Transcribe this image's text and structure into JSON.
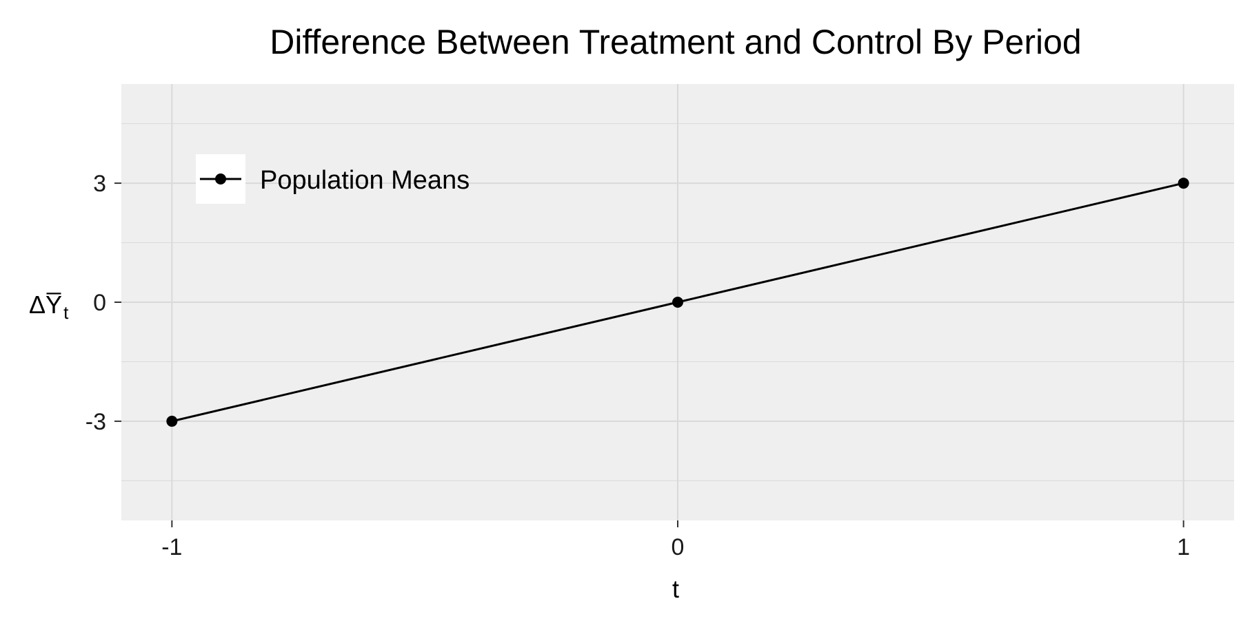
{
  "chart_data": {
    "type": "line",
    "title": "Difference Between Treatment and Control By Period",
    "xlabel": "t",
    "ylabel": "ΔY̅t",
    "ylabel_parts": {
      "main": "ΔY̅",
      "subscript": "t"
    },
    "x": [
      -1,
      0,
      1
    ],
    "series": [
      {
        "name": "Population Means",
        "values": [
          -3,
          0,
          3
        ]
      }
    ],
    "x_ticks": [
      -1,
      0,
      1
    ],
    "x_tick_labels": [
      "-1",
      "0",
      "1"
    ],
    "y_ticks": [
      -3,
      0,
      3
    ],
    "y_tick_labels": [
      "-3",
      "0",
      "3"
    ],
    "xlim": [
      -1.1,
      1.1
    ],
    "ylim": [
      -5.5,
      5.5
    ],
    "grid": true,
    "legend_position": "top-left",
    "colors": {
      "panel": "#efefef",
      "grid": "#d9d9d9",
      "series": "#000000",
      "legend_key": "#ffffff"
    }
  }
}
